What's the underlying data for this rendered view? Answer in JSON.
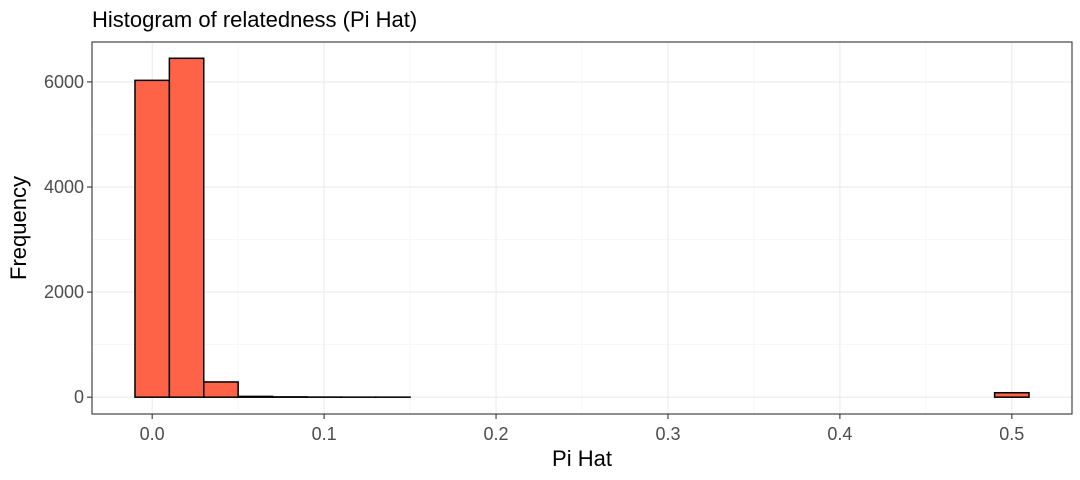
{
  "chart_data": {
    "type": "bar",
    "title": "Histogram of relatedness (Pi Hat)",
    "xlabel": "Pi Hat",
    "ylabel": "Frequency",
    "bin_width": 0.02,
    "bins": [
      {
        "x0": -0.01,
        "x1": 0.01,
        "count": 6030
      },
      {
        "x0": 0.01,
        "x1": 0.03,
        "count": 6450
      },
      {
        "x0": 0.03,
        "x1": 0.05,
        "count": 290
      },
      {
        "x0": 0.05,
        "x1": 0.07,
        "count": 15
      },
      {
        "x0": 0.07,
        "x1": 0.09,
        "count": 6
      },
      {
        "x0": 0.09,
        "x1": 0.11,
        "count": 2
      },
      {
        "x0": 0.11,
        "x1": 0.13,
        "count": 1
      },
      {
        "x0": 0.13,
        "x1": 0.15,
        "count": 1
      },
      {
        "x0": 0.15,
        "x1": 0.17,
        "count": 0
      },
      {
        "x0": 0.17,
        "x1": 0.19,
        "count": 0
      },
      {
        "x0": 0.19,
        "x1": 0.21,
        "count": 0
      },
      {
        "x0": 0.21,
        "x1": 0.23,
        "count": 0
      },
      {
        "x0": 0.23,
        "x1": 0.25,
        "count": 0
      },
      {
        "x0": 0.25,
        "x1": 0.27,
        "count": 0
      },
      {
        "x0": 0.27,
        "x1": 0.29,
        "count": 0
      },
      {
        "x0": 0.29,
        "x1": 0.31,
        "count": 0
      },
      {
        "x0": 0.31,
        "x1": 0.33,
        "count": 0
      },
      {
        "x0": 0.33,
        "x1": 0.35,
        "count": 0
      },
      {
        "x0": 0.35,
        "x1": 0.37,
        "count": 0
      },
      {
        "x0": 0.37,
        "x1": 0.39,
        "count": 0
      },
      {
        "x0": 0.39,
        "x1": 0.41,
        "count": 0
      },
      {
        "x0": 0.41,
        "x1": 0.43,
        "count": 0
      },
      {
        "x0": 0.43,
        "x1": 0.45,
        "count": 0
      },
      {
        "x0": 0.45,
        "x1": 0.47,
        "count": 0
      },
      {
        "x0": 0.47,
        "x1": 0.49,
        "count": 0
      },
      {
        "x0": 0.49,
        "x1": 0.51,
        "count": 85
      }
    ],
    "xlim": [
      -0.035,
      0.535
    ],
    "ylim": [
      -320,
      6760
    ],
    "x_ticks": [
      0.0,
      0.1,
      0.2,
      0.3,
      0.4,
      0.5
    ],
    "x_tick_labels": [
      "0.0",
      "0.1",
      "0.2",
      "0.3",
      "0.4",
      "0.5"
    ],
    "y_ticks": [
      0,
      2000,
      4000,
      6000
    ],
    "y_tick_labels": [
      "0",
      "2000",
      "4000",
      "6000"
    ],
    "grid": true,
    "legend": "none",
    "bar_color": "#FF6347",
    "bar_outline_color": "#000000"
  }
}
